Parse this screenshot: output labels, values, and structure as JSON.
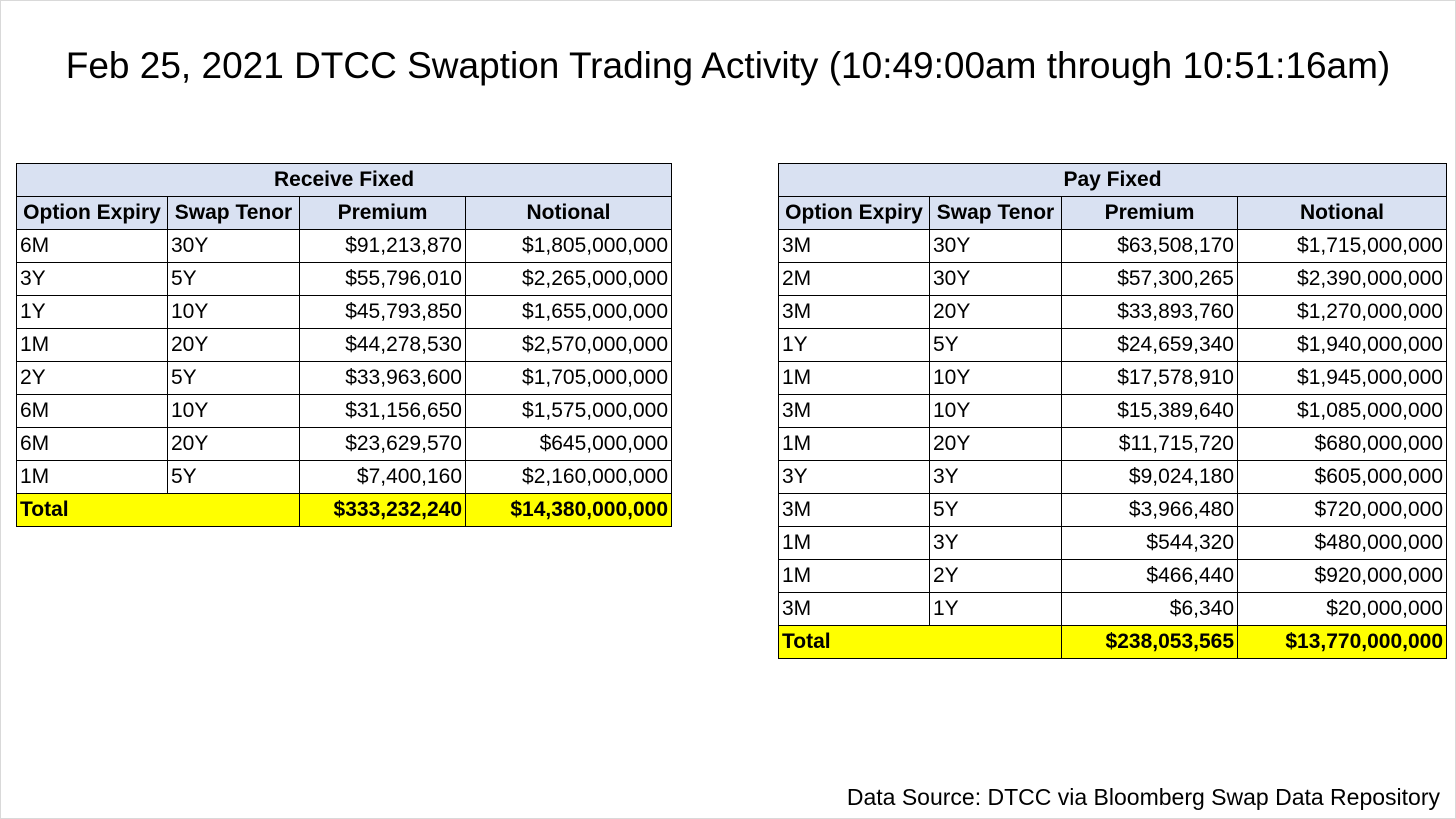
{
  "title": "Feb 25, 2021 DTCC Swaption Trading Activity (10:49:00am through 10:51:16am)",
  "receive_fixed": {
    "heading": "Receive Fixed",
    "columns": [
      "Option Expiry",
      "Swap Tenor",
      "Premium",
      "Notional"
    ],
    "rows": [
      [
        "6M",
        "30Y",
        "$91,213,870",
        "$1,805,000,000"
      ],
      [
        "3Y",
        "5Y",
        "$55,796,010",
        "$2,265,000,000"
      ],
      [
        "1Y",
        "10Y",
        "$45,793,850",
        "$1,655,000,000"
      ],
      [
        "1M",
        "20Y",
        "$44,278,530",
        "$2,570,000,000"
      ],
      [
        "2Y",
        "5Y",
        "$33,963,600",
        "$1,705,000,000"
      ],
      [
        "6M",
        "10Y",
        "$31,156,650",
        "$1,575,000,000"
      ],
      [
        "6M",
        "20Y",
        "$23,629,570",
        "$645,000,000"
      ],
      [
        "1M",
        "5Y",
        "$7,400,160",
        "$2,160,000,000"
      ]
    ],
    "total": {
      "label": "Total",
      "premium": "$333,232,240",
      "notional": "$14,380,000,000"
    }
  },
  "pay_fixed": {
    "heading": "Pay Fixed",
    "columns": [
      "Option Expiry",
      "Swap Tenor",
      "Premium",
      "Notional"
    ],
    "rows": [
      [
        "3M",
        "30Y",
        "$63,508,170",
        "$1,715,000,000"
      ],
      [
        "2M",
        "30Y",
        "$57,300,265",
        "$2,390,000,000"
      ],
      [
        "3M",
        "20Y",
        "$33,893,760",
        "$1,270,000,000"
      ],
      [
        "1Y",
        "5Y",
        "$24,659,340",
        "$1,940,000,000"
      ],
      [
        "1M",
        "10Y",
        "$17,578,910",
        "$1,945,000,000"
      ],
      [
        "3M",
        "10Y",
        "$15,389,640",
        "$1,085,000,000"
      ],
      [
        "1M",
        "20Y",
        "$11,715,720",
        "$680,000,000"
      ],
      [
        "3Y",
        "3Y",
        "$9,024,180",
        "$605,000,000"
      ],
      [
        "3M",
        "5Y",
        "$3,966,480",
        "$720,000,000"
      ],
      [
        "1M",
        "3Y",
        "$544,320",
        "$480,000,000"
      ],
      [
        "1M",
        "2Y",
        "$466,440",
        "$920,000,000"
      ],
      [
        "3M",
        "1Y",
        "$6,340",
        "$20,000,000"
      ]
    ],
    "total": {
      "label": "Total",
      "premium": "$238,053,565",
      "notional": "$13,770,000,000"
    }
  },
  "source": "Data Source: DTCC via Bloomberg Swap Data Repository",
  "colors": {
    "header_fill": "#d9e1f2",
    "total_fill": "#ffff00"
  }
}
